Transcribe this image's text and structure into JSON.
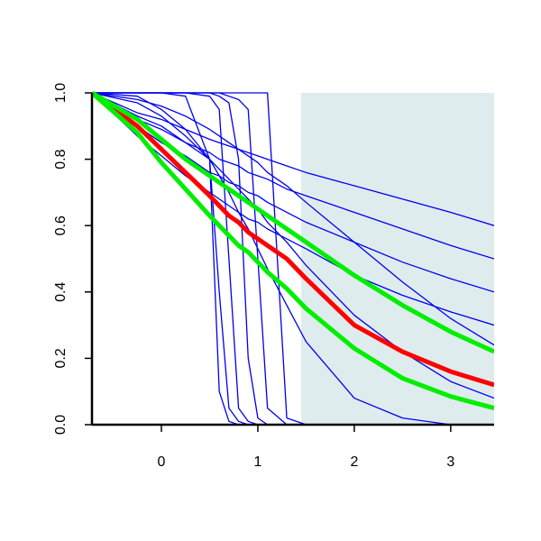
{
  "chart_data": {
    "type": "line",
    "x": [
      -0.72,
      -0.25,
      0,
      0.25,
      0.5,
      0.6,
      0.7,
      0.8,
      0.9,
      1,
      1.1,
      1.3,
      1.5,
      2,
      2.5,
      3,
      3.45
    ],
    "xlim": [
      -0.72,
      3.45
    ],
    "ylim": [
      0,
      1
    ],
    "xticks": [
      0,
      1,
      2,
      3
    ],
    "yticks": [
      {
        "value": 0,
        "label": "0.0"
      },
      {
        "value": 0.2,
        "label": "0.2"
      },
      {
        "value": 0.4,
        "label": "0.4"
      },
      {
        "value": 0.6,
        "label": "0.6"
      },
      {
        "value": 0.8,
        "label": "0.8"
      },
      {
        "value": 1,
        "label": "1.0"
      }
    ],
    "shade": {
      "xlim": [
        1.45,
        3.45
      ],
      "ylim": [
        0,
        1
      ],
      "color": "#dfeced"
    },
    "series": [
      {
        "color": "#0000ee",
        "values": [
          1,
          0.94,
          0.92,
          0.89,
          0.86,
          0.85,
          0.84,
          0.83,
          0.82,
          0.81,
          0.8,
          0.78,
          0.76,
          0.72,
          0.68,
          0.64,
          0.6
        ]
      },
      {
        "color": "#0000ee",
        "values": [
          1,
          0.92,
          0.89,
          0.85,
          0.82,
          0.8,
          0.79,
          0.78,
          0.76,
          0.75,
          0.74,
          0.71,
          0.69,
          0.64,
          0.59,
          0.54,
          0.5
        ]
      },
      {
        "color": "#0000ee",
        "values": [
          1,
          0.9,
          0.85,
          0.81,
          0.76,
          0.75,
          0.73,
          0.72,
          0.7,
          0.69,
          0.67,
          0.64,
          0.61,
          0.55,
          0.49,
          0.44,
          0.4
        ]
      },
      {
        "color": "#0000ee",
        "values": [
          1,
          0.87,
          0.81,
          0.75,
          0.7,
          0.68,
          0.66,
          0.64,
          0.62,
          0.61,
          0.59,
          0.56,
          0.53,
          0.45,
          0.39,
          0.34,
          0.3
        ]
      },
      {
        "color": "#0000ee",
        "values": [
          1,
          0.98,
          0.96,
          0.93,
          0.89,
          0.87,
          0.85,
          0.83,
          0.81,
          0.79,
          0.76,
          0.72,
          0.67,
          0.55,
          0.43,
          0.32,
          0.24
        ]
      },
      {
        "color": "#0000ee",
        "values": [
          1,
          1,
          1,
          0.99,
          0.8,
          0.1,
          0.01,
          0,
          0,
          0,
          0,
          0,
          0,
          0,
          0,
          0,
          0
        ]
      },
      {
        "color": "#0000ee",
        "values": [
          1,
          1,
          1,
          1,
          0.99,
          0.95,
          0.5,
          0.05,
          0.01,
          0,
          0,
          0,
          0,
          0,
          0,
          0,
          0
        ]
      },
      {
        "color": "#0000ee",
        "values": [
          1,
          1,
          1,
          1,
          1,
          0.99,
          0.97,
          0.8,
          0.2,
          0.02,
          0,
          0,
          0,
          0,
          0,
          0,
          0
        ]
      },
      {
        "color": "#0000ee",
        "values": [
          1,
          1,
          1,
          1,
          1,
          1,
          0.99,
          0.98,
          0.95,
          0.5,
          0.05,
          0,
          0,
          0,
          0,
          0,
          0
        ]
      },
      {
        "color": "#0000ee",
        "values": [
          1,
          1,
          1,
          1,
          1,
          1,
          1,
          1,
          1,
          1,
          1,
          0.02,
          0,
          0,
          0,
          0,
          0
        ]
      },
      {
        "color": "#0000ee",
        "values": [
          1,
          0.93,
          0.9,
          0.85,
          0.8,
          0.4,
          0.05,
          0.01,
          0,
          0,
          0,
          0,
          0,
          0,
          0,
          0,
          0
        ]
      },
      {
        "color": "#0000ee",
        "values": [
          1,
          0.99,
          0.95,
          0.89,
          0.8,
          0.75,
          0.7,
          0.64,
          0.59,
          0.53,
          0.47,
          0.36,
          0.25,
          0.08,
          0.02,
          0,
          0
        ]
      },
      {
        "color": "#0000ee",
        "values": [
          1,
          0.97,
          0.93,
          0.87,
          0.8,
          0.77,
          0.74,
          0.71,
          0.68,
          0.65,
          0.61,
          0.55,
          0.48,
          0.33,
          0.22,
          0.13,
          0.08
        ]
      },
      {
        "color": "#ff0000",
        "width": 5,
        "values": [
          1,
          0.9,
          0.83,
          0.76,
          0.69,
          0.66,
          0.63,
          0.61,
          0.58,
          0.56,
          0.54,
          0.5,
          0.44,
          0.3,
          0.22,
          0.16,
          0.12
        ]
      },
      {
        "color": "#00ee00",
        "width": 5,
        "values": [
          1,
          0.92,
          0.86,
          0.8,
          0.75,
          0.73,
          0.71,
          0.69,
          0.67,
          0.65,
          0.63,
          0.59,
          0.55,
          0.45,
          0.36,
          0.28,
          0.22
        ]
      },
      {
        "color": "#00ee00",
        "width": 5,
        "values": [
          1,
          0.88,
          0.79,
          0.71,
          0.63,
          0.6,
          0.57,
          0.54,
          0.52,
          0.49,
          0.46,
          0.41,
          0.35,
          0.23,
          0.14,
          0.085,
          0.05
        ]
      }
    ]
  }
}
